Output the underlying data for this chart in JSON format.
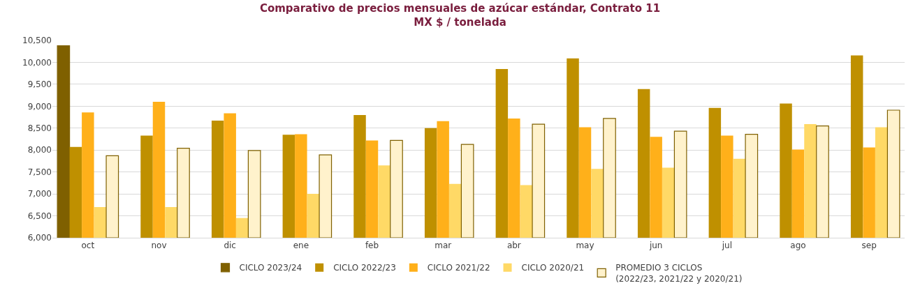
{
  "chart_data": {
    "type": "bar",
    "title": "Comparativo de precios mensuales de azúcar estándar, Contrato 11",
    "subtitle": "MX $ / tonelada",
    "categories": [
      "oct",
      "nov",
      "dic",
      "ene",
      "feb",
      "mar",
      "abr",
      "may",
      "jun",
      "jul",
      "ago",
      "sep"
    ],
    "series": [
      {
        "name": "CICLO 2023/24",
        "color": "#7f6000",
        "values": [
          10380,
          null,
          null,
          null,
          null,
          null,
          null,
          null,
          null,
          null,
          null,
          null
        ]
      },
      {
        "name": "CICLO 2022/23",
        "color": "#bf9000",
        "values": [
          8070,
          8330,
          8670,
          8350,
          8800,
          8500,
          9850,
          10090,
          9390,
          8960,
          9060,
          10160
        ]
      },
      {
        "name": "CICLO 2021/22",
        "color": "#ffb01a",
        "values": [
          8860,
          9100,
          8840,
          8360,
          8220,
          8660,
          8720,
          8520,
          8300,
          8330,
          8010,
          8060
        ]
      },
      {
        "name": "CICLO 2020/21",
        "color": "#ffd966",
        "values": [
          6700,
          6700,
          6450,
          7000,
          7650,
          7230,
          7200,
          7570,
          7600,
          7800,
          8590,
          8520
        ]
      },
      {
        "name": "PROMEDIO 3 CICLOS\n(2022/23, 2021/22 y 2020/21)",
        "color": "#fff2cc",
        "values": [
          7870,
          8040,
          7990,
          7890,
          8220,
          8130,
          8590,
          8720,
          8430,
          8360,
          8550,
          8910
        ]
      }
    ],
    "ylim": [
      6000,
      10500
    ],
    "yticks": [
      {
        "value": 6000,
        "label": "6,000"
      },
      {
        "value": 6500,
        "label": "6,500"
      },
      {
        "value": 7000,
        "label": "7,000"
      },
      {
        "value": 7500,
        "label": "7,500"
      },
      {
        "value": 8000,
        "label": "8,000"
      },
      {
        "value": 8500,
        "label": "8,500"
      },
      {
        "value": 9000,
        "label": "9,000"
      },
      {
        "value": 9500,
        "label": "9,500"
      },
      {
        "value": 10000,
        "label": "10,000"
      },
      {
        "value": 10500,
        "label": "10,500"
      }
    ],
    "grid": "y",
    "legend": "bottom"
  }
}
